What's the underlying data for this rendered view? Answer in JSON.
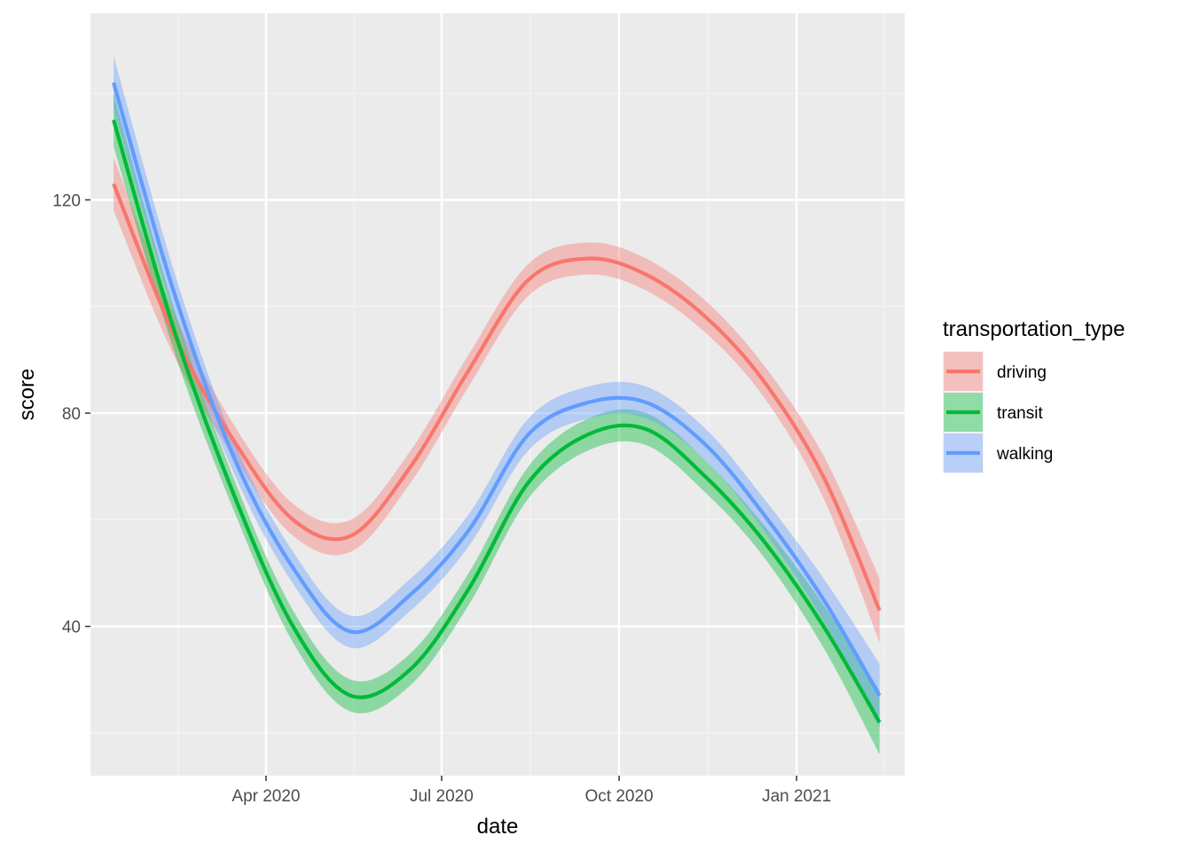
{
  "chart_data": {
    "type": "line",
    "xlabel": "date",
    "ylabel": "score",
    "x_ticks": [
      "Apr 2020",
      "Jul 2020",
      "Oct 2020",
      "Jan 2021"
    ],
    "y_ticks": [
      40,
      80,
      120
    ],
    "xlim": [
      "2020-01-01",
      "2021-02-26"
    ],
    "ylim": [
      12,
      155
    ],
    "grid": true,
    "legend": {
      "title": "transportation_type",
      "position": "right"
    },
    "x": [
      "2020-01-13",
      "2020-02-13",
      "2020-03-15",
      "2020-04-15",
      "2020-05-15",
      "2020-06-15",
      "2020-07-15",
      "2020-08-15",
      "2020-09-15",
      "2020-10-15",
      "2020-11-15",
      "2020-12-15",
      "2021-01-15",
      "2021-02-13"
    ],
    "series": [
      {
        "name": "driving",
        "color": "#F8766D",
        "fill": "#F8766D",
        "values": [
          123,
          95,
          75,
          60,
          57,
          70,
          88,
          105,
          109,
          106,
          98,
          86,
          68,
          43
        ],
        "band": [
          5,
          4,
          3,
          3,
          3,
          3,
          3,
          3,
          3,
          3,
          3,
          3,
          4,
          6
        ]
      },
      {
        "name": "transit",
        "color": "#00BA38",
        "fill": "#00BA38",
        "values": [
          135,
          96,
          65,
          40,
          27,
          32,
          47,
          67,
          76,
          77,
          68,
          56,
          40,
          22
        ],
        "band": [
          5,
          4,
          3,
          3,
          3,
          3,
          3,
          3,
          3,
          3,
          3,
          3,
          4,
          6
        ]
      },
      {
        "name": "walking",
        "color": "#619CFF",
        "fill": "#619CFF",
        "values": [
          142,
          103,
          72,
          51,
          39,
          46,
          58,
          76,
          82,
          82,
          74,
          61,
          45,
          27
        ],
        "band": [
          5,
          4,
          3,
          3,
          3,
          3,
          3,
          3,
          3,
          3,
          3,
          3,
          4,
          6
        ]
      }
    ]
  }
}
